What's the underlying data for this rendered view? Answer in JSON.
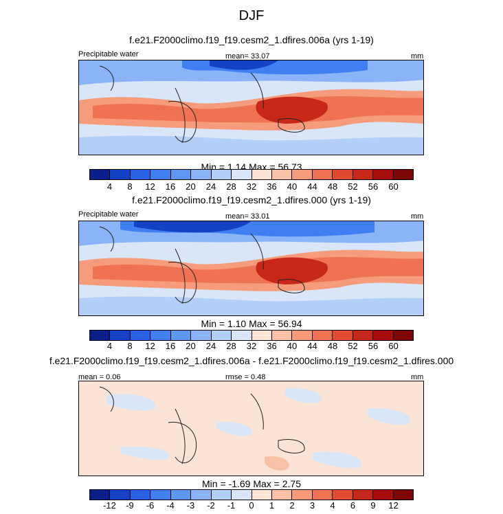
{
  "figure": {
    "title": "DJF"
  },
  "panels": [
    {
      "title": "f.e21.F2000climo.f19_f19.cesm2_1.dfires.006a (yrs 1-19)",
      "left_label": "Precipitable water",
      "center_label": "mean=  33.07",
      "right_label": "mm",
      "minmax": "Min =   1.14 Max =  56.73",
      "colorbar": "absolute"
    },
    {
      "title": "f.e21.F2000climo.f19_f19.cesm2_1.dfires.000 (yrs 1-19)",
      "left_label": "Precipitable water",
      "center_label": "mean=  33.01",
      "right_label": "mm",
      "minmax": "Min =   1.10 Max =  56.94",
      "colorbar": "absolute"
    },
    {
      "title": "f.e21.F2000climo.f19_f19.cesm2_1.dfires.006a - f.e21.F2000climo.f19_f19.cesm2_1.dfires.000",
      "left_label": "mean =   0.06",
      "center_label": "rmse =   0.48",
      "right_label": "mm",
      "minmax": "Min =  -1.69 Max =   2.75",
      "colorbar": "difference"
    }
  ],
  "colorbars": {
    "absolute": {
      "colors": [
        "#0a1e8c",
        "#1541c4",
        "#2a62e6",
        "#3f7ff2",
        "#5e97f6",
        "#8ab3f8",
        "#b3cff8",
        "#d8e6f8",
        "#fbe3d6",
        "#f9c2a6",
        "#f69c7c",
        "#ef7352",
        "#e04a2e",
        "#c8281a",
        "#a70e0e",
        "#7d0808"
      ],
      "ticks": [
        "4",
        "8",
        "12",
        "16",
        "20",
        "24",
        "28",
        "32",
        "36",
        "40",
        "44",
        "48",
        "52",
        "56",
        "60"
      ]
    },
    "difference": {
      "colors": [
        "#0a1e8c",
        "#1541c4",
        "#2a62e6",
        "#3f7ff2",
        "#5e97f6",
        "#8ab3f8",
        "#b3cff8",
        "#d8e6f8",
        "#fbe3d6",
        "#f9c2a6",
        "#f69c7c",
        "#ef7352",
        "#e04a2e",
        "#c8281a",
        "#a70e0e",
        "#7d0808"
      ],
      "ticks": [
        "-12",
        "-9",
        "-6",
        "-4",
        "-3",
        "-2",
        "-1",
        "0",
        "1",
        "2",
        "3",
        "4",
        "6",
        "9",
        "12"
      ]
    }
  }
}
